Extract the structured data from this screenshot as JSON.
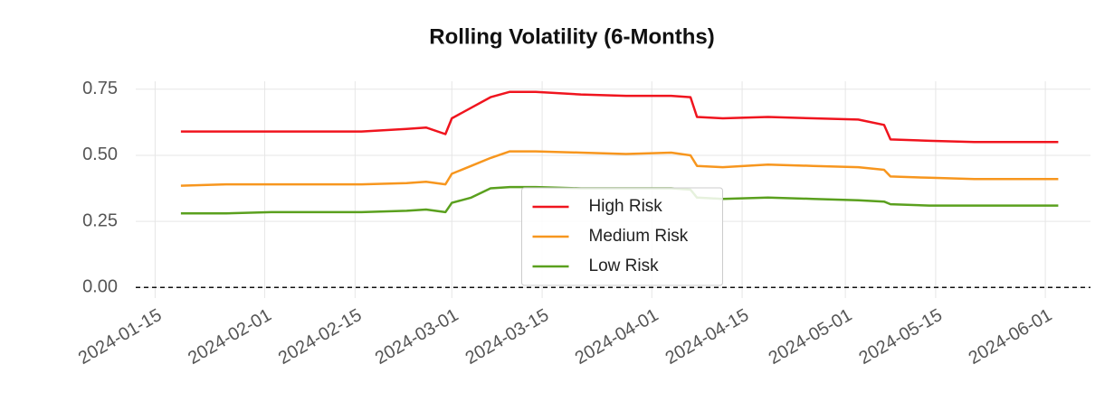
{
  "chart_data": {
    "type": "line",
    "title": "Rolling Volatility (6-Months)",
    "x": [
      "2024-01-19",
      "2024-01-26",
      "2024-02-02",
      "2024-02-09",
      "2024-02-16",
      "2024-02-23",
      "2024-02-26",
      "2024-02-29",
      "2024-03-01",
      "2024-03-04",
      "2024-03-07",
      "2024-03-10",
      "2024-03-14",
      "2024-03-21",
      "2024-03-28",
      "2024-04-04",
      "2024-04-07",
      "2024-04-08",
      "2024-04-12",
      "2024-04-19",
      "2024-04-26",
      "2024-05-03",
      "2024-05-07",
      "2024-05-08",
      "2024-05-14",
      "2024-05-21",
      "2024-05-28",
      "2024-06-03"
    ],
    "series": [
      {
        "name": "High Risk",
        "color": "#f0141e",
        "values": [
          0.59,
          0.59,
          0.59,
          0.59,
          0.59,
          0.6,
          0.605,
          0.58,
          0.64,
          0.68,
          0.72,
          0.74,
          0.74,
          0.73,
          0.725,
          0.725,
          0.72,
          0.645,
          0.64,
          0.645,
          0.64,
          0.635,
          0.615,
          0.56,
          0.555,
          0.55,
          0.55,
          0.55
        ]
      },
      {
        "name": "Medium Risk",
        "color": "#f7961e",
        "values": [
          0.385,
          0.39,
          0.39,
          0.39,
          0.39,
          0.395,
          0.4,
          0.39,
          0.43,
          0.46,
          0.49,
          0.515,
          0.515,
          0.51,
          0.505,
          0.51,
          0.5,
          0.46,
          0.455,
          0.465,
          0.46,
          0.455,
          0.445,
          0.42,
          0.415,
          0.41,
          0.41,
          0.41
        ]
      },
      {
        "name": "Low Risk",
        "color": "#5aa01e",
        "values": [
          0.28,
          0.28,
          0.285,
          0.285,
          0.285,
          0.29,
          0.295,
          0.285,
          0.32,
          0.34,
          0.375,
          0.38,
          0.38,
          0.375,
          0.375,
          0.375,
          0.37,
          0.34,
          0.335,
          0.34,
          0.335,
          0.33,
          0.325,
          0.315,
          0.31,
          0.31,
          0.31,
          0.31
        ]
      }
    ],
    "xlim": [
      "2024-01-12",
      "2024-06-08"
    ],
    "xticks": [
      "2024-01-15",
      "2024-02-01",
      "2024-02-15",
      "2024-03-01",
      "2024-03-15",
      "2024-04-01",
      "2024-04-15",
      "2024-05-01",
      "2024-05-15",
      "2024-06-01"
    ],
    "ylim": [
      -0.04,
      0.78
    ],
    "yticks": [
      {
        "value": 0,
        "label": "0.00"
      },
      {
        "value": 0.25,
        "label": "0.25"
      },
      {
        "value": 0.5,
        "label": "0.50"
      },
      {
        "value": 0.75,
        "label": "0.75"
      }
    ],
    "hline": 0,
    "grid": true,
    "legend": "center"
  }
}
